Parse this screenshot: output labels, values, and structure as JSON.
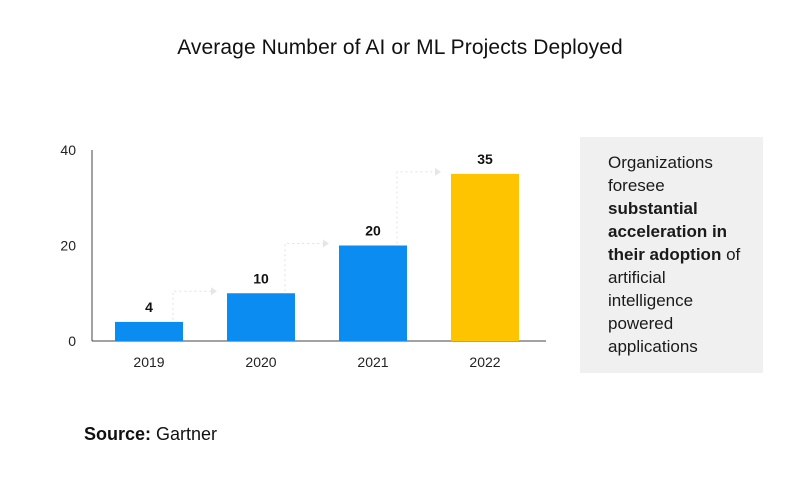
{
  "chart_data": {
    "type": "bar",
    "title": "Average Number of AI or ML Projects Deployed",
    "categories": [
      "2019",
      "2020",
      "2021",
      "2022"
    ],
    "values": [
      4,
      10,
      20,
      35
    ],
    "data_labels": [
      "4",
      "10",
      "20",
      "35"
    ],
    "ylim": [
      0,
      40
    ],
    "yticks": [
      0,
      20,
      40
    ],
    "xlabel": "",
    "ylabel": "",
    "colors": [
      "#0a8cf0",
      "#0a8cf0",
      "#0a8cf0",
      "#ffc400"
    ],
    "grid": false
  },
  "note": {
    "pre": "Organizations foresee",
    "bold": "substantial acceleration in their adoption",
    "post": "of artificial intelligence powered applications"
  },
  "source": {
    "label": "Source:",
    "value": " Gartner"
  }
}
